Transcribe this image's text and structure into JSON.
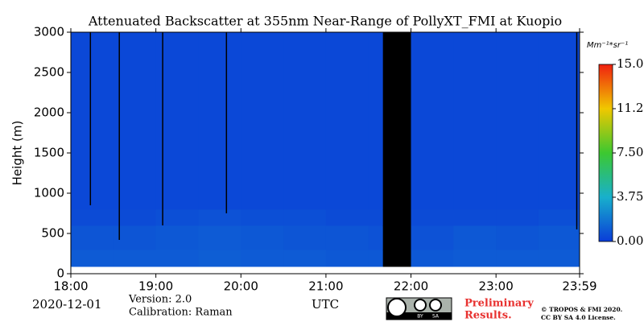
{
  "chart_data": {
    "type": "heatmap",
    "title": "Attenuated Backscatter at 355nm Near-Range of PollyXT_FMI at Kuopio",
    "y_label": "Height (m)",
    "x_label": "UTC",
    "date": "2020-12-01",
    "version": "Version: 2.0",
    "calibration": "Calibration: Raman",
    "preliminary": [
      "Preliminary",
      "Results."
    ],
    "copyright": [
      "© TROPOS & FMI 2020.",
      "CC BY SA 4.0 License."
    ],
    "license_badge": [
      "BY",
      "SA"
    ],
    "colorbar_label": "Mm⁻¹*sr⁻¹",
    "xlim": [
      18,
      23.983
    ],
    "xticks": [
      {
        "value": 18,
        "label": "18:00"
      },
      {
        "value": 19,
        "label": "19:00"
      },
      {
        "value": 20,
        "label": "20:00"
      },
      {
        "value": 21,
        "label": "21:00"
      },
      {
        "value": 22,
        "label": "22:00"
      },
      {
        "value": 23,
        "label": "23:00"
      },
      {
        "value": 23.983,
        "label": "23:59"
      }
    ],
    "ylim": [
      0,
      3000
    ],
    "yticks": [
      0,
      500,
      1000,
      1500,
      2000,
      2500,
      3000
    ],
    "zlim": [
      0,
      15
    ],
    "zticks": [
      {
        "value": 0,
        "label": "0.00"
      },
      {
        "value": 3.75,
        "label": "3.75"
      },
      {
        "value": 7.5,
        "label": "7.50"
      },
      {
        "value": 11.25,
        "label": "11.25"
      },
      {
        "value": 15,
        "label": "15.00"
      }
    ],
    "colormap": [
      "#0a3cd8",
      "#18b0cc",
      "#3cc830",
      "#f0c800",
      "#f02010"
    ],
    "x_bins": [
      18,
      18.5,
      19,
      19.5,
      20,
      20.5,
      21,
      21.5,
      21.67,
      22,
      22.5,
      23,
      23.5,
      23.983
    ],
    "y_bins": [
      90,
      300,
      600,
      800,
      3000
    ],
    "z": [
      [
        1.0,
        0.8,
        0.5,
        0.4
      ],
      [
        1.0,
        0.8,
        0.5,
        0.4
      ],
      [
        1.0,
        0.9,
        0.6,
        0.4
      ],
      [
        1.1,
        1.0,
        0.7,
        0.4
      ],
      [
        1.0,
        0.9,
        0.6,
        0.4
      ],
      [
        1.0,
        0.8,
        0.6,
        0.4
      ],
      [
        0.9,
        0.8,
        0.5,
        0.4
      ],
      [
        0.9,
        0.7,
        0.5,
        0.4
      ],
      [
        null,
        null,
        null,
        null
      ],
      [
        0.9,
        0.7,
        0.5,
        0.4
      ],
      [
        1.0,
        0.9,
        0.5,
        0.4
      ],
      [
        1.0,
        0.8,
        0.5,
        0.4
      ],
      [
        1.0,
        0.9,
        0.6,
        0.4
      ]
    ],
    "missing_profiles": {
      "x": [
        18.23,
        18.57,
        19.08,
        19.83,
        23.95
      ],
      "bottom": [
        850,
        420,
        600,
        750,
        550
      ]
    }
  }
}
